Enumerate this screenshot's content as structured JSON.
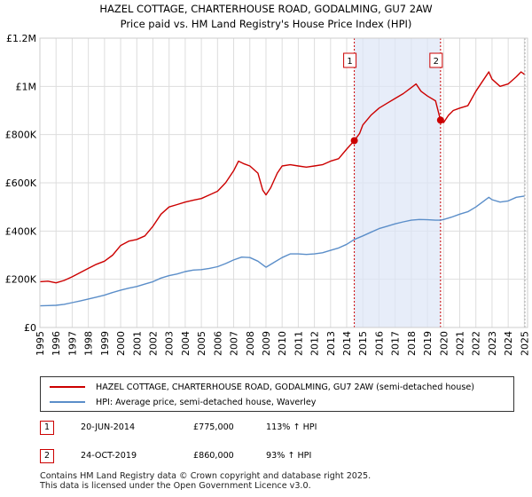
{
  "chart_data": {
    "type": "line",
    "title": "HAZEL COTTAGE, CHARTERHOUSE ROAD, GODALMING, GU7 2AW",
    "subtitle": "Price paid vs. HM Land Registry's House Price Index (HPI)",
    "xlim": [
      1995,
      2025.2
    ],
    "ylim": [
      0,
      1200000
    ],
    "x_ticks": [
      1995,
      1996,
      1997,
      1998,
      1999,
      2000,
      2001,
      2002,
      2003,
      2004,
      2005,
      2006,
      2007,
      2008,
      2009,
      2010,
      2011,
      2012,
      2013,
      2014,
      2015,
      2016,
      2017,
      2018,
      2019,
      2020,
      2021,
      2022,
      2023,
      2024,
      2025
    ],
    "y_ticks": [
      {
        "value": 0,
        "label": "£0"
      },
      {
        "value": 200000,
        "label": "£200K"
      },
      {
        "value": 400000,
        "label": "£400K"
      },
      {
        "value": 600000,
        "label": "£600K"
      },
      {
        "value": 800000,
        "label": "£800K"
      },
      {
        "value": 1000000,
        "label": "£1M"
      },
      {
        "value": 1200000,
        "label": "£1.2M"
      }
    ],
    "grid": true,
    "series": [
      {
        "name": "HAZEL COTTAGE, CHARTERHOUSE ROAD, GODALMING, GU7 2AW (semi-detached house)",
        "color": "#cc0000",
        "points": [
          [
            1995,
            190000
          ],
          [
            1995.5,
            192000
          ],
          [
            1996,
            185000
          ],
          [
            1996.5,
            195000
          ],
          [
            1997,
            210000
          ],
          [
            1997.5,
            228000
          ],
          [
            1998,
            245000
          ],
          [
            1998.5,
            262000
          ],
          [
            1999,
            275000
          ],
          [
            1999.5,
            300000
          ],
          [
            2000,
            340000
          ],
          [
            2000.5,
            358000
          ],
          [
            2001,
            365000
          ],
          [
            2001.5,
            380000
          ],
          [
            2002,
            420000
          ],
          [
            2002.5,
            470000
          ],
          [
            2003,
            500000
          ],
          [
            2003.5,
            510000
          ],
          [
            2004,
            520000
          ],
          [
            2004.5,
            528000
          ],
          [
            2005,
            535000
          ],
          [
            2005.5,
            550000
          ],
          [
            2006,
            565000
          ],
          [
            2006.5,
            600000
          ],
          [
            2007,
            650000
          ],
          [
            2007.3,
            690000
          ],
          [
            2007.6,
            680000
          ],
          [
            2008,
            670000
          ],
          [
            2008.5,
            640000
          ],
          [
            2008.8,
            570000
          ],
          [
            2009,
            550000
          ],
          [
            2009.3,
            580000
          ],
          [
            2009.7,
            640000
          ],
          [
            2010,
            670000
          ],
          [
            2010.5,
            675000
          ],
          [
            2011,
            670000
          ],
          [
            2011.5,
            665000
          ],
          [
            2012,
            670000
          ],
          [
            2012.5,
            675000
          ],
          [
            2013,
            690000
          ],
          [
            2013.5,
            700000
          ],
          [
            2014,
            740000
          ],
          [
            2014.47,
            775000
          ],
          [
            2014.8,
            805000
          ],
          [
            2015,
            840000
          ],
          [
            2015.5,
            880000
          ],
          [
            2016,
            910000
          ],
          [
            2016.5,
            930000
          ],
          [
            2017,
            950000
          ],
          [
            2017.5,
            970000
          ],
          [
            2018,
            995000
          ],
          [
            2018.3,
            1010000
          ],
          [
            2018.6,
            980000
          ],
          [
            2019,
            960000
          ],
          [
            2019.5,
            940000
          ],
          [
            2019.81,
            860000
          ],
          [
            2020,
            850000
          ],
          [
            2020.3,
            880000
          ],
          [
            2020.6,
            900000
          ],
          [
            2021,
            910000
          ],
          [
            2021.5,
            920000
          ],
          [
            2022,
            980000
          ],
          [
            2022.5,
            1030000
          ],
          [
            2022.8,
            1060000
          ],
          [
            2023,
            1030000
          ],
          [
            2023.5,
            1000000
          ],
          [
            2024,
            1010000
          ],
          [
            2024.5,
            1040000
          ],
          [
            2024.8,
            1060000
          ],
          [
            2025,
            1050000
          ]
        ]
      },
      {
        "name": "HPI: Average price, semi-detached house, Waverley",
        "color": "#5b8ec9",
        "points": [
          [
            1995,
            90000
          ],
          [
            1995.5,
            91000
          ],
          [
            1996,
            92000
          ],
          [
            1996.5,
            96000
          ],
          [
            1997,
            103000
          ],
          [
            1997.5,
            110000
          ],
          [
            1998,
            118000
          ],
          [
            1998.5,
            126000
          ],
          [
            1999,
            134000
          ],
          [
            1999.5,
            145000
          ],
          [
            2000,
            155000
          ],
          [
            2000.5,
            163000
          ],
          [
            2001,
            170000
          ],
          [
            2001.5,
            180000
          ],
          [
            2002,
            190000
          ],
          [
            2002.5,
            205000
          ],
          [
            2003,
            215000
          ],
          [
            2003.5,
            222000
          ],
          [
            2004,
            232000
          ],
          [
            2004.5,
            238000
          ],
          [
            2005,
            240000
          ],
          [
            2005.5,
            245000
          ],
          [
            2006,
            252000
          ],
          [
            2006.5,
            265000
          ],
          [
            2007,
            280000
          ],
          [
            2007.5,
            292000
          ],
          [
            2008,
            290000
          ],
          [
            2008.5,
            275000
          ],
          [
            2008.9,
            255000
          ],
          [
            2009,
            250000
          ],
          [
            2009.5,
            270000
          ],
          [
            2010,
            290000
          ],
          [
            2010.5,
            305000
          ],
          [
            2011,
            305000
          ],
          [
            2011.5,
            303000
          ],
          [
            2012,
            305000
          ],
          [
            2012.5,
            310000
          ],
          [
            2013,
            320000
          ],
          [
            2013.5,
            330000
          ],
          [
            2014,
            345000
          ],
          [
            2014.47,
            365000
          ],
          [
            2015,
            380000
          ],
          [
            2015.5,
            395000
          ],
          [
            2016,
            410000
          ],
          [
            2016.5,
            420000
          ],
          [
            2017,
            430000
          ],
          [
            2017.5,
            438000
          ],
          [
            2018,
            445000
          ],
          [
            2018.5,
            448000
          ],
          [
            2019,
            447000
          ],
          [
            2019.5,
            445000
          ],
          [
            2019.81,
            445000
          ],
          [
            2020,
            448000
          ],
          [
            2020.5,
            458000
          ],
          [
            2021,
            470000
          ],
          [
            2021.5,
            480000
          ],
          [
            2022,
            500000
          ],
          [
            2022.5,
            525000
          ],
          [
            2022.8,
            540000
          ],
          [
            2023,
            530000
          ],
          [
            2023.5,
            520000
          ],
          [
            2024,
            525000
          ],
          [
            2024.5,
            540000
          ],
          [
            2025,
            545000
          ]
        ]
      }
    ],
    "annotations": [
      {
        "label": "1",
        "x": 2014.47,
        "y": 775000
      },
      {
        "label": "2",
        "x": 2019.81,
        "y": 860000
      }
    ],
    "shaded_range": [
      2014.47,
      2019.81
    ]
  },
  "legend": {
    "series1": "HAZEL COTTAGE, CHARTERHOUSE ROAD, GODALMING, GU7 2AW (semi-detached house)",
    "series2": "HPI: Average price, semi-detached house, Waverley"
  },
  "transactions": [
    {
      "id": "1",
      "date": "20-JUN-2014",
      "price": "£775,000",
      "hpi": "113% ↑ HPI"
    },
    {
      "id": "2",
      "date": "24-OCT-2019",
      "price": "£860,000",
      "hpi": "93% ↑ HPI"
    }
  ],
  "footer": {
    "line1": "Contains HM Land Registry data © Crown copyright and database right 2025.",
    "line2": "This data is licensed under the Open Government Licence v3.0."
  },
  "colors": {
    "accent_red": "#cc0000",
    "hpi_blue": "#5b8ec9",
    "shade": "#dde6f7"
  }
}
